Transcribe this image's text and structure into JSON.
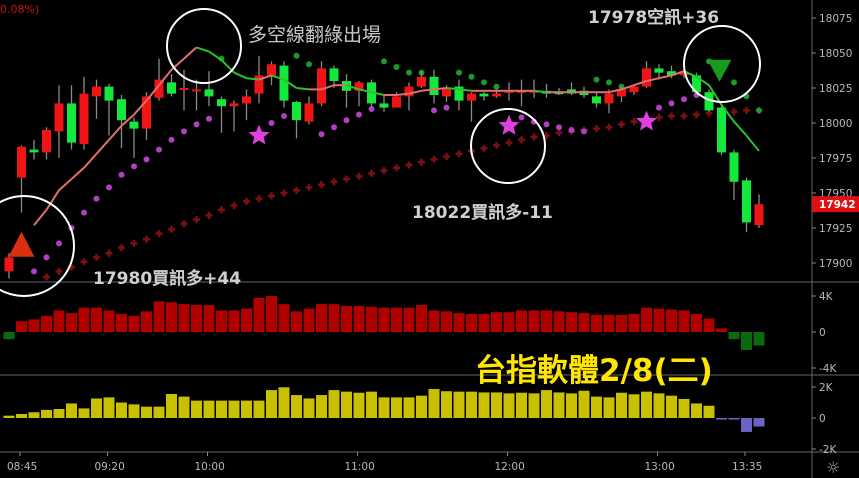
{
  "header": {
    "change_pct": "0.08%)"
  },
  "annotations": {
    "exit_note": "多空線翻綠出場",
    "sell_signal": "17978空訊+36",
    "buy_signal_2": "18022買訊多-11",
    "buy_signal_1": "17980買訊多+44",
    "watermark": "台指軟體2/8(二)"
  },
  "colors": {
    "up": "#f01414",
    "down": "#14e83a",
    "wick": "#8a8a8a",
    "ma_up": "#e07070",
    "ma_down": "#2cc02c",
    "sar_low": "#b040c0",
    "sar_high": "#1a9a2a",
    "cross": "#7a1010",
    "vol_up": "#b00000",
    "vol_down": "#0a6a10",
    "flow_pos": "#c8c000",
    "flow_neg": "#6b63c8",
    "last_price": "#e01010",
    "star": "#e040e0"
  },
  "chart_data": [
    {
      "type": "candlestick",
      "price_ticks": [
        18075,
        18050,
        18025,
        18000,
        17975,
        17950,
        17925,
        17900
      ],
      "ylim": [
        17880,
        18088
      ],
      "last_price": 17942,
      "time_labels": [
        "08:45",
        "09:20",
        "10:00",
        "11:00",
        "12:00",
        "13:00",
        "13:35"
      ],
      "ohlc": [
        [
          17894,
          17907,
          17889,
          17904
        ],
        [
          17961,
          17984,
          17936,
          17983
        ],
        [
          17981,
          17988,
          17974,
          17979
        ],
        [
          17979,
          17997,
          17974,
          17995
        ],
        [
          17994,
          18027,
          17975,
          18014
        ],
        [
          18014,
          18027,
          17981,
          17986
        ],
        [
          17985,
          18033,
          17981,
          18021
        ],
        [
          18019,
          18031,
          18003,
          18026
        ],
        [
          18026,
          18028,
          17991,
          18016
        ],
        [
          18017,
          18020,
          17982,
          18002
        ],
        [
          18001,
          18004,
          17975,
          17996
        ],
        [
          17996,
          18022,
          17988,
          18019
        ],
        [
          18018,
          18046,
          18016,
          18031
        ],
        [
          18029,
          18035,
          18019,
          18021
        ],
        [
          18024,
          18038,
          18009,
          18025
        ],
        [
          18023,
          18031,
          18009,
          18024
        ],
        [
          18024,
          18037,
          18012,
          18019
        ],
        [
          18017,
          18019,
          17993,
          18012
        ],
        [
          18012,
          18016,
          17994,
          18014
        ],
        [
          18014,
          18024,
          18002,
          18019
        ],
        [
          18021,
          18048,
          18014,
          18034
        ],
        [
          18034,
          18044,
          18027,
          18042
        ],
        [
          18041,
          18044,
          18011,
          18016
        ],
        [
          18015,
          18016,
          17989,
          18002
        ],
        [
          18001,
          18019,
          17999,
          18014
        ],
        [
          18014,
          18044,
          18012,
          18039
        ],
        [
          18039,
          18041,
          18025,
          18030
        ],
        [
          18030,
          18035,
          18011,
          18023
        ],
        [
          18023,
          18030,
          18012,
          18029
        ],
        [
          18029,
          18031,
          18011,
          18014
        ],
        [
          18014,
          18020,
          18008,
          18011
        ],
        [
          18011,
          18022,
          18011,
          18019
        ],
        [
          18019,
          18029,
          18009,
          18026
        ],
        [
          18026,
          18037,
          18025,
          18033
        ],
        [
          18033,
          18038,
          18014,
          18020
        ],
        [
          18019,
          18027,
          18015,
          18025
        ],
        [
          18026,
          18031,
          18009,
          18016
        ],
        [
          18016,
          18022,
          18001,
          18021
        ],
        [
          18021,
          18022,
          18016,
          18019
        ],
        [
          18019,
          18024,
          18018,
          18021
        ],
        [
          18022,
          18029,
          18016,
          18023
        ],
        [
          18022,
          18031,
          18012,
          18023
        ],
        [
          18022,
          18031,
          18018,
          18023
        ],
        [
          18023,
          18028,
          18018,
          18021
        ],
        [
          18022,
          18025,
          18020,
          18021
        ],
        [
          18024,
          18029,
          18020,
          18021
        ],
        [
          18023,
          18026,
          18018,
          18020
        ],
        [
          18019,
          18022,
          18011,
          18014
        ],
        [
          18014,
          18024,
          18007,
          18021
        ],
        [
          18019,
          18026,
          18015,
          18024
        ],
        [
          18022,
          18027,
          18020,
          18026
        ],
        [
          18026,
          18044,
          18025,
          18039
        ],
        [
          18039,
          18042,
          18031,
          18036
        ],
        [
          18037,
          18041,
          18032,
          18034
        ],
        [
          18034,
          18038,
          18032,
          18036
        ],
        [
          18034,
          18036,
          18020,
          18022
        ],
        [
          18022,
          18024,
          18008,
          18009
        ],
        [
          18011,
          18013,
          17977,
          17979
        ],
        [
          17979,
          17981,
          17945,
          17958
        ],
        [
          17959,
          17961,
          17922,
          17929
        ],
        [
          17927,
          17949,
          17925,
          17942
        ]
      ],
      "ma": [
        null,
        null,
        17927,
        17938,
        17952,
        17960,
        17968,
        17978,
        17988,
        17998,
        18006,
        18016,
        18027,
        18038,
        18046,
        18054,
        18051,
        18045,
        18036,
        18032,
        18031,
        18034,
        18031,
        18025,
        18024,
        18024,
        18027,
        18027,
        18024,
        18022,
        18020,
        18020,
        18021,
        18023,
        18024,
        18025,
        18024,
        18023,
        18023,
        18023,
        18023,
        18023,
        18023,
        18022,
        18022,
        18022,
        18022,
        18022,
        18022,
        18024,
        18027,
        18030,
        18032,
        18034,
        18037,
        18033,
        18027,
        18013,
        18001,
        17991,
        17980
      ],
      "sar": [
        [
          2,
          17894,
          "low"
        ],
        [
          3,
          17904,
          "low"
        ],
        [
          4,
          17914,
          "low"
        ],
        [
          5,
          17925,
          "low"
        ],
        [
          6,
          17936,
          "low"
        ],
        [
          7,
          17946,
          "low"
        ],
        [
          8,
          17954,
          "low"
        ],
        [
          9,
          17963,
          "low"
        ],
        [
          10,
          17969,
          "low"
        ],
        [
          11,
          17974,
          "low"
        ],
        [
          12,
          17981,
          "low"
        ],
        [
          13,
          17988,
          "low"
        ],
        [
          14,
          17994,
          "low"
        ],
        [
          15,
          17999,
          "low"
        ],
        [
          16,
          18003,
          "low"
        ],
        [
          17,
          18046,
          "high"
        ],
        [
          21,
          18000,
          "low"
        ],
        [
          22,
          18005,
          "low"
        ],
        [
          23,
          18048,
          "high"
        ],
        [
          24,
          18042,
          "high"
        ],
        [
          25,
          17992,
          "low"
        ],
        [
          26,
          17997,
          "low"
        ],
        [
          27,
          18002,
          "low"
        ],
        [
          28,
          18006,
          "low"
        ],
        [
          29,
          18010,
          "low"
        ],
        [
          30,
          18044,
          "high"
        ],
        [
          31,
          18040,
          "high"
        ],
        [
          32,
          18036,
          "high"
        ],
        [
          33,
          18036,
          "high"
        ],
        [
          34,
          18009,
          "low"
        ],
        [
          35,
          18011,
          "low"
        ],
        [
          36,
          18036,
          "high"
        ],
        [
          37,
          18033,
          "high"
        ],
        [
          38,
          18029,
          "high"
        ],
        [
          39,
          18026,
          "high"
        ],
        [
          41,
          18004,
          "low"
        ],
        [
          42,
          18001,
          "low"
        ],
        [
          43,
          17999,
          "low"
        ],
        [
          44,
          17997,
          "low"
        ],
        [
          45,
          17995,
          "low"
        ],
        [
          46,
          17994,
          "low"
        ],
        [
          47,
          18031,
          "high"
        ],
        [
          48,
          18029,
          "high"
        ],
        [
          49,
          18026,
          "high"
        ],
        [
          52,
          18011,
          "low"
        ],
        [
          53,
          18014,
          "low"
        ],
        [
          54,
          18017,
          "low"
        ],
        [
          55,
          18020,
          "low"
        ],
        [
          56,
          18044,
          "high"
        ],
        [
          57,
          18038,
          "high"
        ],
        [
          58,
          18029,
          "high"
        ],
        [
          59,
          18019,
          "high"
        ],
        [
          60,
          18009,
          "high"
        ]
      ],
      "crosses_start_index": 3,
      "crosses": [
        17890,
        17894,
        17897,
        17901,
        17904,
        17907,
        17911,
        17914,
        17917,
        17921,
        17924,
        17928,
        17931,
        17934,
        17938,
        17941,
        17944,
        17946,
        17948,
        17950,
        17952,
        17954,
        17956,
        17958,
        17960,
        17962,
        17964,
        17966,
        17968,
        17970,
        17972,
        17974,
        17976,
        17978,
        17980,
        17982,
        17984,
        17986,
        17988,
        17990,
        17991,
        17993,
        17994,
        17995,
        17996,
        17997,
        17999,
        18001,
        18002,
        18004,
        18005,
        18005,
        18006,
        18007,
        18008,
        18008,
        18009,
        18009
      ],
      "stars": [
        [
          20,
          17991
        ],
        [
          40,
          17998
        ],
        [
          51,
          18001
        ]
      ],
      "buy_marker": [
        1,
        17913
      ],
      "sell_marker": [
        57,
        18038
      ]
    },
    {
      "type": "bar",
      "ticks": [
        "4K",
        "0",
        "-4K"
      ],
      "ylim": [
        -4,
        4
      ],
      "unit": "K",
      "values": [
        -0.8,
        1.2,
        1.4,
        1.8,
        2.4,
        2.1,
        2.7,
        2.7,
        2.4,
        2.0,
        1.8,
        2.3,
        3.4,
        3.3,
        3.1,
        3.0,
        3.0,
        2.4,
        2.4,
        2.6,
        3.8,
        4.0,
        3.1,
        2.3,
        2.6,
        3.1,
        3.1,
        2.9,
        2.9,
        2.8,
        2.7,
        2.7,
        2.7,
        3.0,
        2.4,
        2.3,
        2.1,
        2.0,
        2.0,
        2.2,
        2.2,
        2.4,
        2.4,
        2.4,
        2.3,
        2.2,
        2.1,
        1.9,
        1.9,
        1.9,
        2.0,
        2.7,
        2.6,
        2.5,
        2.4,
        2.0,
        1.5,
        0.4,
        -0.8,
        -2.0,
        -1.5
      ]
    },
    {
      "type": "bar",
      "ticks": [
        "2K",
        "0",
        "-2K"
      ],
      "ylim": [
        -2,
        2
      ],
      "unit": "K",
      "values": [
        0.15,
        0.26,
        0.37,
        0.52,
        0.58,
        0.94,
        0.62,
        1.26,
        1.33,
        1.0,
        0.88,
        0.73,
        0.73,
        1.55,
        1.38,
        1.12,
        1.12,
        1.12,
        1.12,
        1.12,
        1.12,
        1.8,
        1.98,
        1.48,
        1.26,
        1.48,
        1.8,
        1.7,
        1.63,
        1.7,
        1.33,
        1.33,
        1.33,
        1.44,
        1.87,
        1.73,
        1.7,
        1.7,
        1.65,
        1.65,
        1.59,
        1.63,
        1.59,
        1.8,
        1.65,
        1.59,
        1.76,
        1.38,
        1.33,
        1.63,
        1.53,
        1.7,
        1.59,
        1.44,
        1.23,
        0.94,
        0.79,
        -0.1,
        -0.1,
        -0.9,
        -0.55
      ]
    }
  ]
}
